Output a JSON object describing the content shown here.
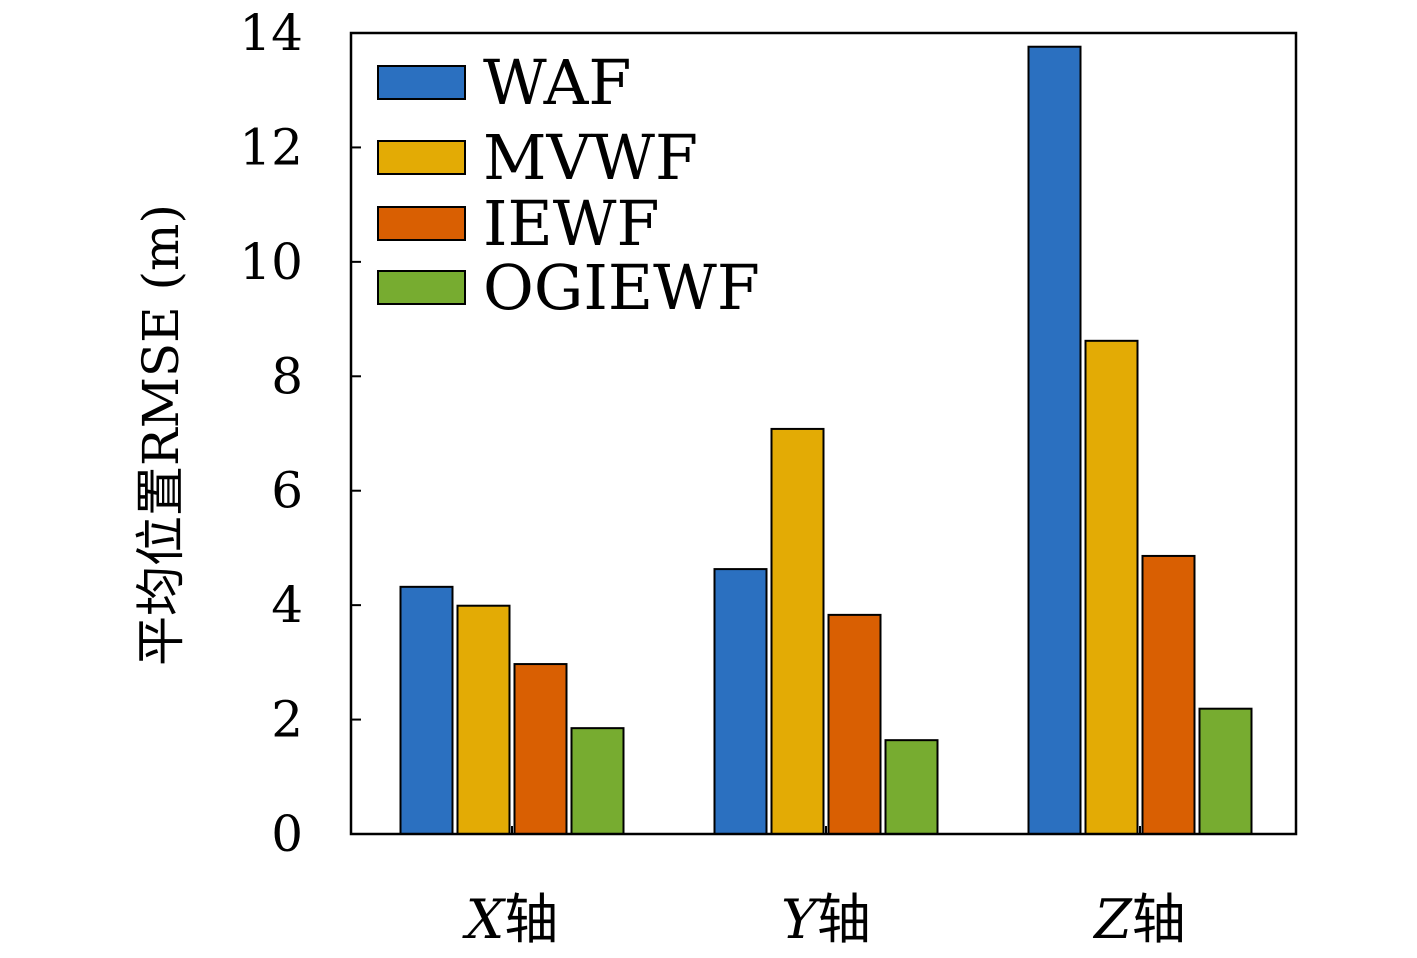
{
  "chart_data": {
    "type": "bar",
    "title": "",
    "xlabel": "",
    "ylabel": "平均位置RMSE (m)",
    "ylim": [
      0,
      14
    ],
    "yticks": [
      0,
      2,
      4,
      6,
      8,
      10,
      12,
      14
    ],
    "grid": false,
    "legend_position": "top-left",
    "categories": [
      {
        "var": "X",
        "suffix": "轴"
      },
      {
        "var": "Y",
        "suffix": "轴"
      },
      {
        "var": "Z",
        "suffix": "轴"
      }
    ],
    "series": [
      {
        "name": "WAF",
        "color": "#2b70c0",
        "values": [
          4.32,
          4.63,
          13.76
        ]
      },
      {
        "name": "MVWF",
        "color": "#e3ab05",
        "values": [
          3.99,
          7.08,
          8.62
        ]
      },
      {
        "name": "IEWF",
        "color": "#d95f02",
        "values": [
          2.97,
          3.83,
          4.86
        ]
      },
      {
        "name": "OGIEWF",
        "color": "#77ac30",
        "values": [
          1.85,
          1.64,
          2.19
        ]
      }
    ]
  }
}
